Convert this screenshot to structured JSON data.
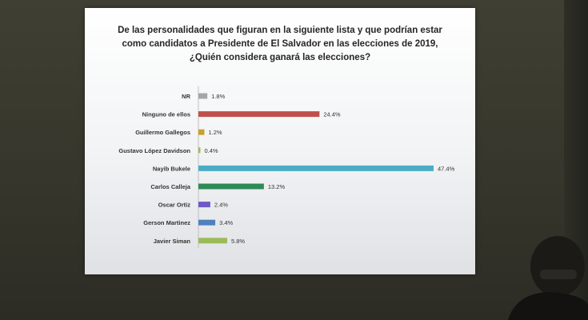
{
  "title_lines": [
    "De las personalidades que figuran en la siguiente lista y que podrían estar",
    "como candidatos a Presidente de El Salvador en las elecciones de 2019,",
    "¿Quién considera ganará las elecciones?"
  ],
  "chart_data": {
    "type": "bar",
    "orientation": "horizontal",
    "categories": [
      "NR",
      "Ninguno de ellos",
      "Guillermo Gallegos",
      "Gustavo López Davidson",
      "Nayib Bukele",
      "Carlos Calleja",
      "Oscar Ortiz",
      "Gerson Martinez",
      "Javier Siman"
    ],
    "values": [
      1.8,
      24.4,
      1.2,
      0.4,
      47.4,
      13.2,
      2.4,
      3.4,
      5.8
    ],
    "value_labels": [
      "1.8%",
      "24.4%",
      "1.2%",
      "0.4%",
      "47.4%",
      "13.2%",
      "2.4%",
      "3.4%",
      "5.8%"
    ],
    "colors": [
      "#a6a6a6",
      "#c0504d",
      "#c9a227",
      "#9bbb59",
      "#4bacc6",
      "#2e8b57",
      "#7059c6",
      "#4f81bd",
      "#9bbb59"
    ],
    "xlim": [
      0,
      47.4
    ],
    "xlabel": "",
    "ylabel": "",
    "grid": false,
    "legend": "none"
  }
}
